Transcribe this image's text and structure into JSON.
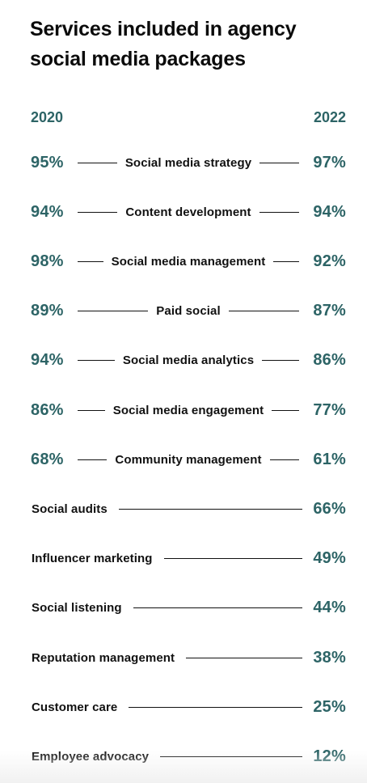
{
  "title": "Services included in agency social media packages",
  "chart_data": {
    "type": "table",
    "title": "Services included in agency social media packages",
    "columns": [
      "2020",
      "2022"
    ],
    "rows": [
      {
        "label": "Social media strategy",
        "y2020": "95%",
        "y2022": "97%"
      },
      {
        "label": "Content development",
        "y2020": "94%",
        "y2022": "94%"
      },
      {
        "label": "Social media management",
        "y2020": "98%",
        "y2022": "92%"
      },
      {
        "label": "Paid social",
        "y2020": "89%",
        "y2022": "87%"
      },
      {
        "label": "Social media analytics",
        "y2020": "94%",
        "y2022": "86%"
      },
      {
        "label": "Social media engagement",
        "y2020": "86%",
        "y2022": "77%"
      },
      {
        "label": "Community management",
        "y2020": "68%",
        "y2022": "61%"
      },
      {
        "label": "Social audits",
        "y2020": null,
        "y2022": "66%"
      },
      {
        "label": "Influencer marketing",
        "y2020": null,
        "y2022": "49%"
      },
      {
        "label": "Social listening",
        "y2020": null,
        "y2022": "44%"
      },
      {
        "label": "Reputation management",
        "y2020": null,
        "y2022": "38%"
      },
      {
        "label": "Customer care",
        "y2020": null,
        "y2022": "25%"
      },
      {
        "label": "Employee advocacy",
        "y2020": null,
        "y2022": "12%"
      }
    ]
  },
  "colors": {
    "accent": "#2d6466",
    "text": "#111111"
  }
}
